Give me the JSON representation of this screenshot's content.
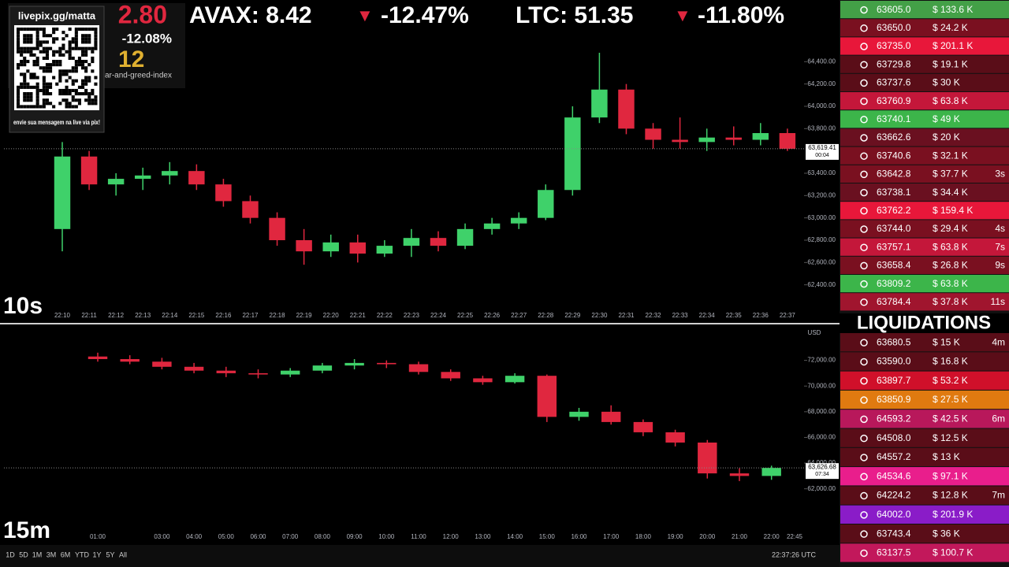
{
  "ticker": {
    "lead_price": "2.80",
    "lead_change": "-12.08%",
    "fear_greed_value": "12",
    "fear_greed_caption": "ar-and-greed-index",
    "items": [
      {
        "label": "AVAX: 8.42",
        "arrow": "▼",
        "change": "-12.47%"
      },
      {
        "label": "LTC: 51.35",
        "arrow": "▼",
        "change": "-11.80%"
      }
    ]
  },
  "qr": {
    "url": "livepix.gg/matta",
    "caption": "envie sua mensagem na live via pix!"
  },
  "chart_data": [
    {
      "type": "candlestick",
      "interval": "10s",
      "up_color": "#3fd16a",
      "down_color": "#e0273f",
      "grid": false,
      "categories": [
        "22:10",
        "22:11",
        "22:12",
        "22:13",
        "22:14",
        "22:15",
        "22:16",
        "22:17",
        "22:18",
        "22:19",
        "22:20",
        "22:21",
        "22:22",
        "22:23",
        "22:24",
        "22:25",
        "22:26",
        "22:27",
        "22:28",
        "22:29",
        "22:30",
        "22:31",
        "22:32",
        "22:33",
        "22:34",
        "22:35",
        "22:36",
        "22:37"
      ],
      "open": [
        62900,
        63550,
        63300,
        63350,
        63380,
        63420,
        63300,
        63150,
        63000,
        62800,
        62700,
        62780,
        62680,
        62750,
        62820,
        62750,
        62900,
        62950,
        63000,
        63250,
        63900,
        64150,
        63800,
        63700,
        63680,
        63720,
        63700,
        63760
      ],
      "high": [
        63680,
        63600,
        63400,
        63450,
        63500,
        63480,
        63350,
        63200,
        63050,
        62900,
        62850,
        62850,
        62800,
        62900,
        62880,
        62950,
        63000,
        63050,
        63300,
        64000,
        64480,
        64200,
        63850,
        63900,
        63800,
        63820,
        63850,
        63800
      ],
      "low": [
        62700,
        63250,
        63200,
        63250,
        63300,
        63250,
        63100,
        62950,
        62750,
        62580,
        62650,
        62600,
        62650,
        62650,
        62700,
        62720,
        62850,
        62900,
        62980,
        63200,
        63850,
        63750,
        63620,
        63620,
        63600,
        63650,
        63650,
        63600
      ],
      "close": [
        63550,
        63300,
        63350,
        63380,
        63420,
        63300,
        63150,
        63000,
        62800,
        62700,
        62780,
        62680,
        62750,
        62820,
        62750,
        62900,
        62950,
        63000,
        63250,
        63900,
        64150,
        63800,
        63700,
        63680,
        63720,
        63700,
        63760,
        63619.41
      ],
      "ylim": [
        62200,
        64600
      ],
      "yticks": [
        {
          "value": 62400,
          "label": "62,400.00"
        },
        {
          "value": 62600,
          "label": "62,600.00"
        },
        {
          "value": 62800,
          "label": "62,800.00"
        },
        {
          "value": 63000,
          "label": "63,000.00"
        },
        {
          "value": 63200,
          "label": "63,200.00"
        },
        {
          "value": 63400,
          "label": "63,400.00"
        },
        {
          "value": 63800,
          "label": "63,800.00"
        },
        {
          "value": 64000,
          "label": "64,000.00"
        },
        {
          "value": 64200,
          "label": "64,200.00"
        },
        {
          "value": 64400,
          "label": "64,400.00"
        }
      ],
      "last_price": {
        "value": 63619.41,
        "label": "63,619.41",
        "countdown": "00:04"
      }
    },
    {
      "type": "candlestick",
      "interval": "15m",
      "up_color": "#3fd16a",
      "down_color": "#e0273f",
      "grid": false,
      "currency": "USD",
      "categories": [
        "01:00",
        null,
        "03:00",
        "04:00",
        "05:00",
        "06:00",
        "07:00",
        "08:00",
        "09:00",
        "10:00",
        "11:00",
        "12:00",
        "13:00",
        "14:00",
        "15:00",
        "16:00",
        "17:00",
        "18:00",
        "19:00",
        "20:00",
        "21:00",
        "22:00"
      ],
      "end_label": "22:45",
      "open": [
        72300,
        72100,
        71900,
        71500,
        71200,
        71000,
        70900,
        71200,
        71600,
        71800,
        71700,
        71100,
        70600,
        70300,
        70800,
        67600,
        68000,
        67200,
        66400,
        65600,
        63200,
        63000
      ],
      "high": [
        72600,
        72400,
        72200,
        71800,
        71500,
        71300,
        71400,
        71800,
        72100,
        72000,
        71900,
        71300,
        70800,
        71000,
        70900,
        68300,
        68500,
        67400,
        66600,
        65800,
        63600,
        63800
      ],
      "low": [
        71900,
        71700,
        71300,
        71000,
        70700,
        70600,
        70700,
        71000,
        71300,
        71400,
        70900,
        70400,
        70100,
        70200,
        67200,
        67300,
        67000,
        66100,
        65300,
        62800,
        62600,
        62700
      ],
      "close": [
        72100,
        71900,
        71500,
        71200,
        71000,
        70900,
        71200,
        71600,
        71800,
        71700,
        71100,
        70600,
        70300,
        70800,
        67600,
        68000,
        67200,
        66400,
        65600,
        63200,
        63000,
        63626.68
      ],
      "ylim": [
        61000,
        74000
      ],
      "yticks": [
        {
          "value": 62000,
          "label": "62,000.00"
        },
        {
          "value": 64000,
          "label": "64,000.00"
        },
        {
          "value": 66000,
          "label": "66,000.00"
        },
        {
          "value": 68000,
          "label": "68,000.00"
        },
        {
          "value": 70000,
          "label": "70,000.00"
        },
        {
          "value": 72000,
          "label": "72,000.00"
        }
      ],
      "last_price": {
        "value": 63626.68,
        "label": "63,626.68",
        "countdown": "07:34"
      }
    }
  ],
  "toolbar": {
    "ranges": [
      "1D",
      "5D",
      "1M",
      "3M",
      "6M",
      "YTD",
      "1Y",
      "5Y",
      "All"
    ],
    "clock": "22:37:26 UTC"
  },
  "trades": [
    {
      "price": "63605.0",
      "amount": "$ 133.6 K",
      "color": "#43a047"
    },
    {
      "price": "63650.0",
      "amount": "$ 24.2 K",
      "color": "#7a1020"
    },
    {
      "price": "63735.0",
      "amount": "$ 201.1 K",
      "color": "#e8173a"
    },
    {
      "price": "63729.8",
      "amount": "$ 19.1 K",
      "color": "#5a0d18"
    },
    {
      "price": "63737.6",
      "amount": "$ 30 K",
      "color": "#5a0d18"
    },
    {
      "price": "63760.9",
      "amount": "$ 63.8 K",
      "color": "#c4173a"
    },
    {
      "price": "63740.1",
      "amount": "$ 49 K",
      "color": "#3cb54a"
    },
    {
      "price": "63662.6",
      "amount": "$ 20 K",
      "color": "#6a1020"
    },
    {
      "price": "63740.6",
      "amount": "$ 32.1 K",
      "color": "#7a1020"
    },
    {
      "price": "63642.8",
      "amount": "$ 37.7 K",
      "time": "3s",
      "color": "#7a1020"
    },
    {
      "price": "63738.1",
      "amount": "$ 34.4 K",
      "color": "#6a1020"
    },
    {
      "price": "63762.2",
      "amount": "$ 159.4 K",
      "color": "#e8173a"
    },
    {
      "price": "63744.0",
      "amount": "$ 29.4 K",
      "time": "4s",
      "color": "#7a1020"
    },
    {
      "price": "63757.1",
      "amount": "$ 63.8 K",
      "time": "7s",
      "color": "#c4173a"
    },
    {
      "price": "63658.4",
      "amount": "$ 26.8 K",
      "time": "9s",
      "color": "#7a1020"
    },
    {
      "price": "63809.2",
      "amount": "$ 63.8 K",
      "color": "#3cb54a"
    },
    {
      "price": "63784.4",
      "amount": "$ 37.8 K",
      "time": "11s",
      "color": "#a0152e"
    }
  ],
  "liquidations": {
    "title": "LIQUIDATIONS",
    "rows": [
      {
        "price": "63680.5",
        "amount": "$ 15 K",
        "time": "4m",
        "color": "#5a0d18"
      },
      {
        "price": "63590.0",
        "amount": "$ 16.8 K",
        "color": "#5a0d18"
      },
      {
        "price": "63897.7",
        "amount": "$ 53.2 K",
        "color": "#d0102a"
      },
      {
        "price": "63850.9",
        "amount": "$ 27.5 K",
        "color": "#e07a10"
      },
      {
        "price": "64593.2",
        "amount": "$ 42.5 K",
        "time": "6m",
        "color": "#b8185b"
      },
      {
        "price": "64508.0",
        "amount": "$ 12.5 K",
        "color": "#5a0d18"
      },
      {
        "price": "64557.2",
        "amount": "$ 13 K",
        "color": "#5a0d18"
      },
      {
        "price": "64534.6",
        "amount": "$ 97.1 K",
        "color": "#e91e8c"
      },
      {
        "price": "64224.2",
        "amount": "$ 12.8 K",
        "time": "7m",
        "color": "#5a0d18"
      },
      {
        "price": "64002.0",
        "amount": "$ 201.9 K",
        "color": "#8a1cc8"
      },
      {
        "price": "63743.4",
        "amount": "$ 36 K",
        "color": "#5a0d18"
      },
      {
        "price": "63137.5",
        "amount": "$ 100.7 K",
        "color": "#c2185b"
      }
    ]
  }
}
